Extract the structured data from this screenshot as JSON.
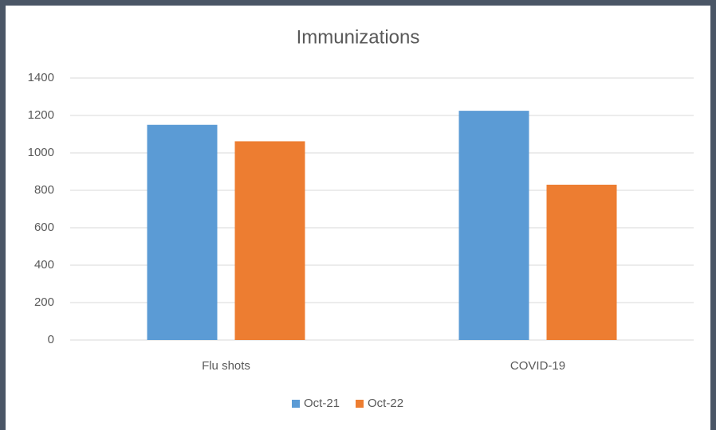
{
  "chart_data": {
    "type": "bar",
    "title": "Immunizations",
    "categories": [
      "Flu shots",
      "COVID-19"
    ],
    "series": [
      {
        "name": "Oct-21",
        "color": "#5b9bd5",
        "values": [
          1150,
          1225
        ]
      },
      {
        "name": "Oct-22",
        "color": "#ed7d31",
        "values": [
          1062,
          830
        ]
      }
    ],
    "ylim": [
      0,
      1400
    ],
    "yticks": [
      0,
      200,
      400,
      600,
      800,
      1000,
      1200,
      1400
    ],
    "grid": true,
    "legend": "bottom"
  }
}
